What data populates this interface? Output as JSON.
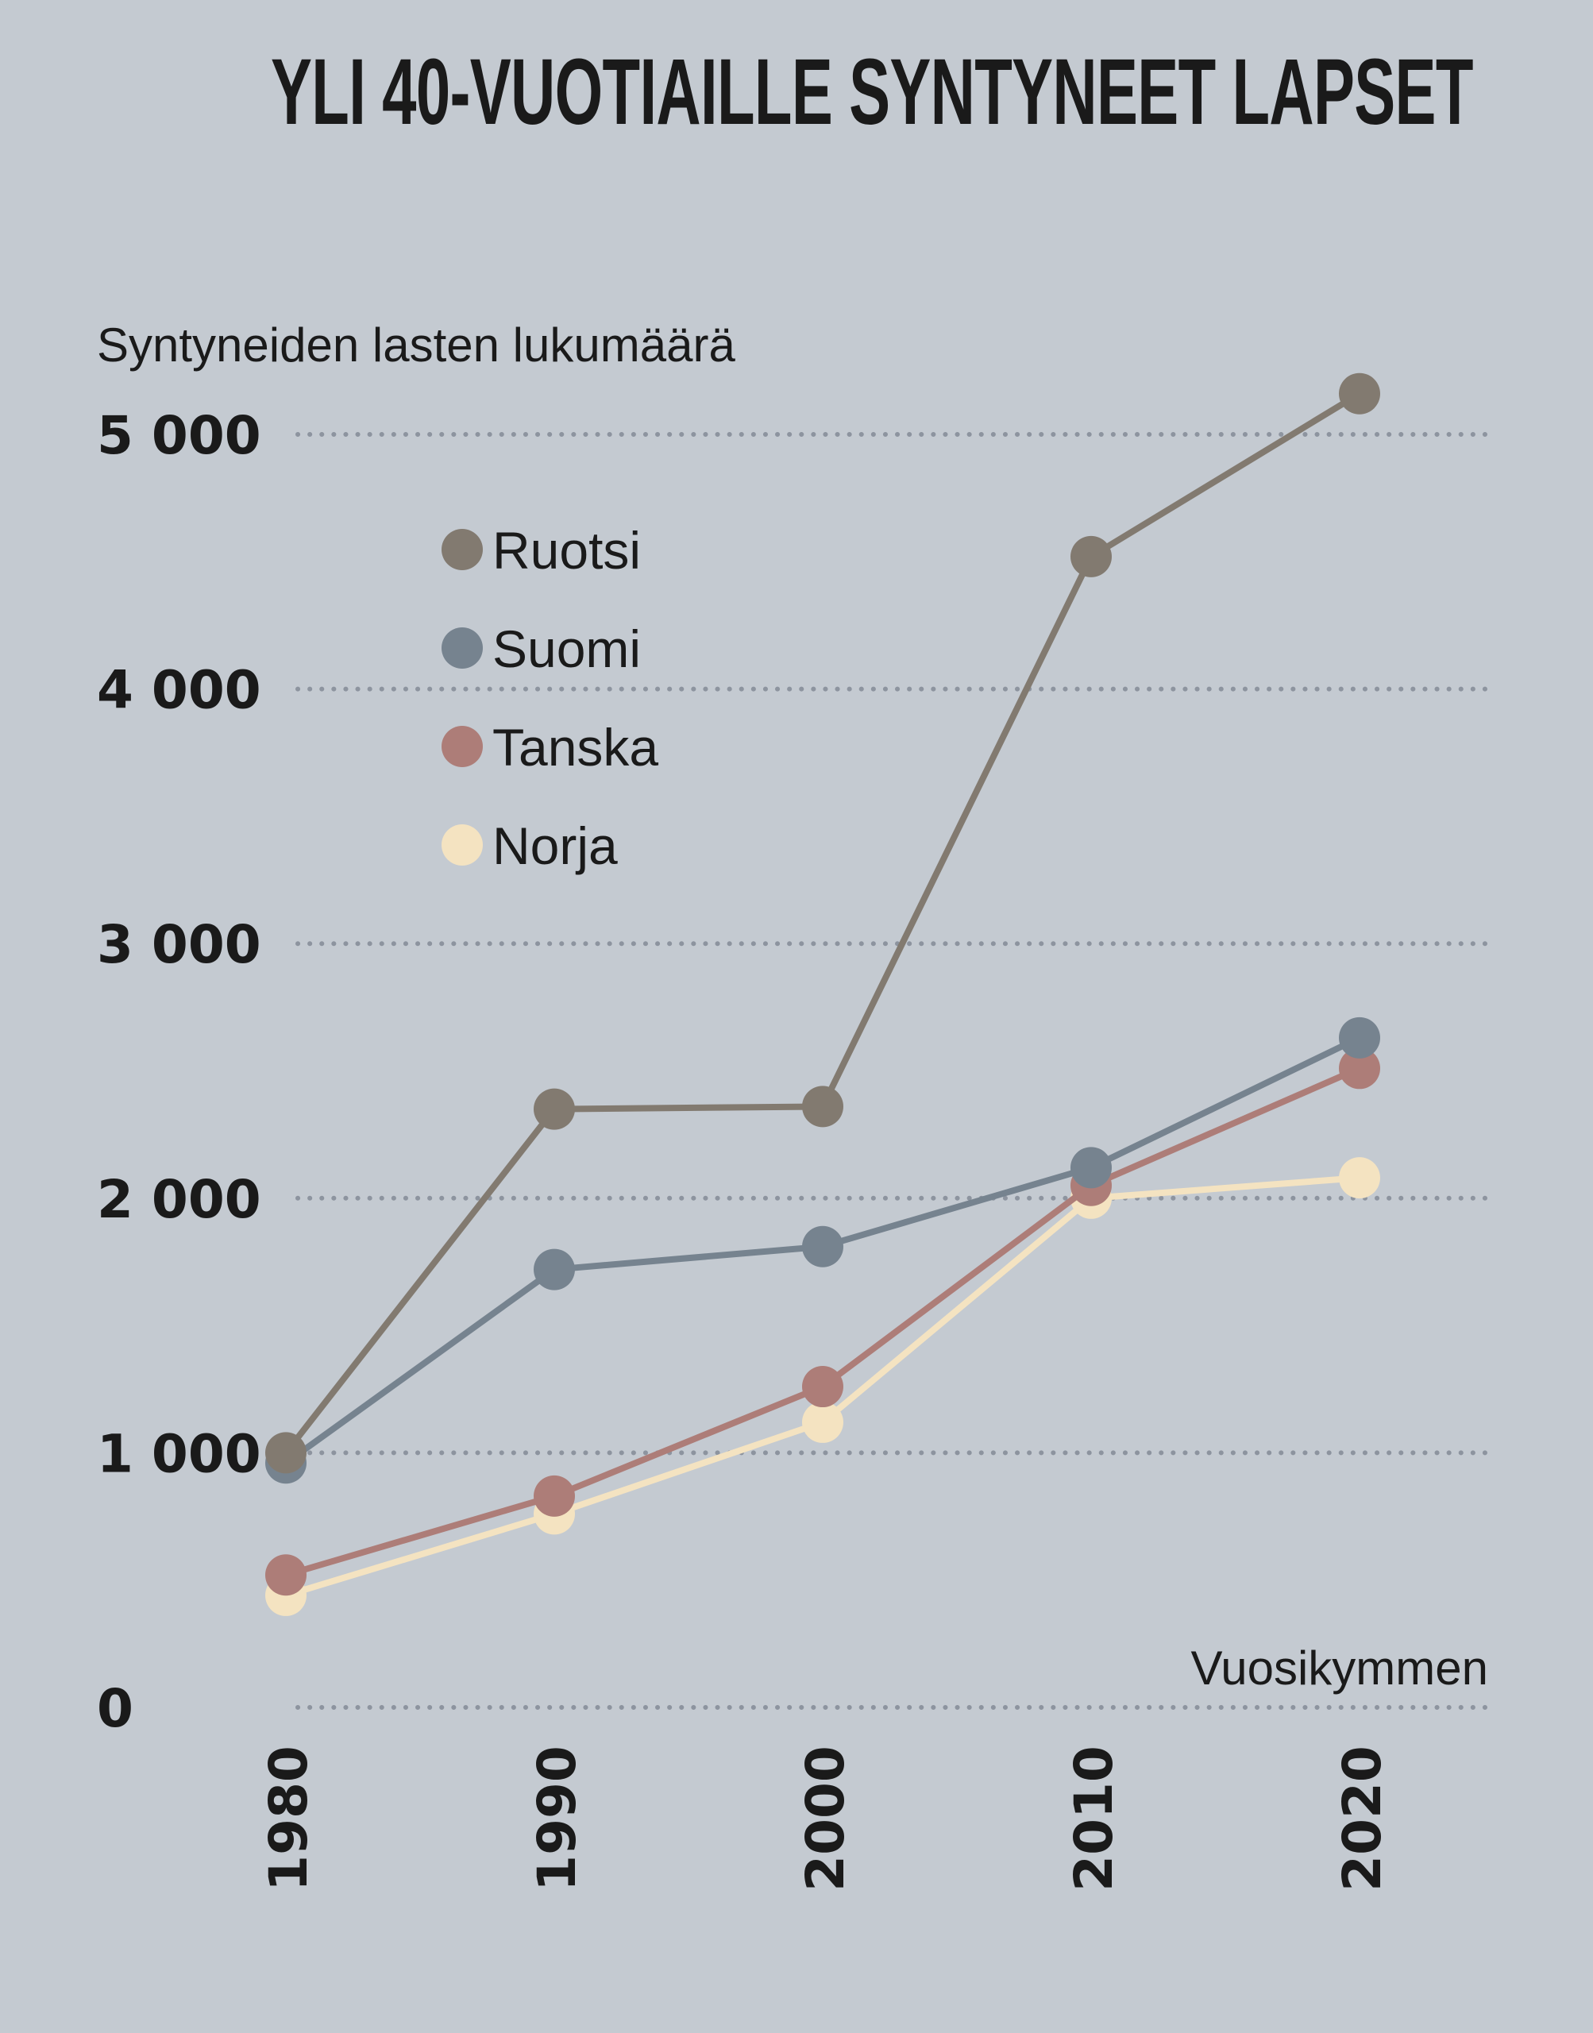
{
  "chart_data": {
    "type": "line",
    "title": "YLI 40-VUOTIAILLE SYNTYNEET LAPSET",
    "ylabel": "Syntyneiden lasten lukumäärä",
    "xlabel": "Vuosikymmen",
    "x": [
      1980,
      1990,
      2000,
      2010,
      2020
    ],
    "x_tick_labels": [
      "1980",
      "1990",
      "2000",
      "2010",
      "2020"
    ],
    "y_ticks": [
      0,
      1000,
      2000,
      3000,
      4000,
      5000
    ],
    "y_tick_labels": [
      "0",
      "1 000",
      "2 000",
      "3 000",
      "4 000",
      "5 000"
    ],
    "ylim": [
      0,
      5000
    ],
    "grid": true,
    "legend_position": "top-left",
    "series": [
      {
        "name": "Ruotsi",
        "color": "#827a70",
        "values": [
          1000,
          2350,
          2360,
          4520,
          5160
        ]
      },
      {
        "name": "Suomi",
        "color": "#76838f",
        "values": [
          960,
          1720,
          1810,
          2120,
          2630
        ]
      },
      {
        "name": "Tanska",
        "color": "#ad7d78",
        "values": [
          520,
          830,
          1260,
          2050,
          2510
        ]
      },
      {
        "name": "Norja",
        "color": "#f4e3c1",
        "values": [
          440,
          760,
          1120,
          2000,
          2080
        ]
      }
    ]
  }
}
